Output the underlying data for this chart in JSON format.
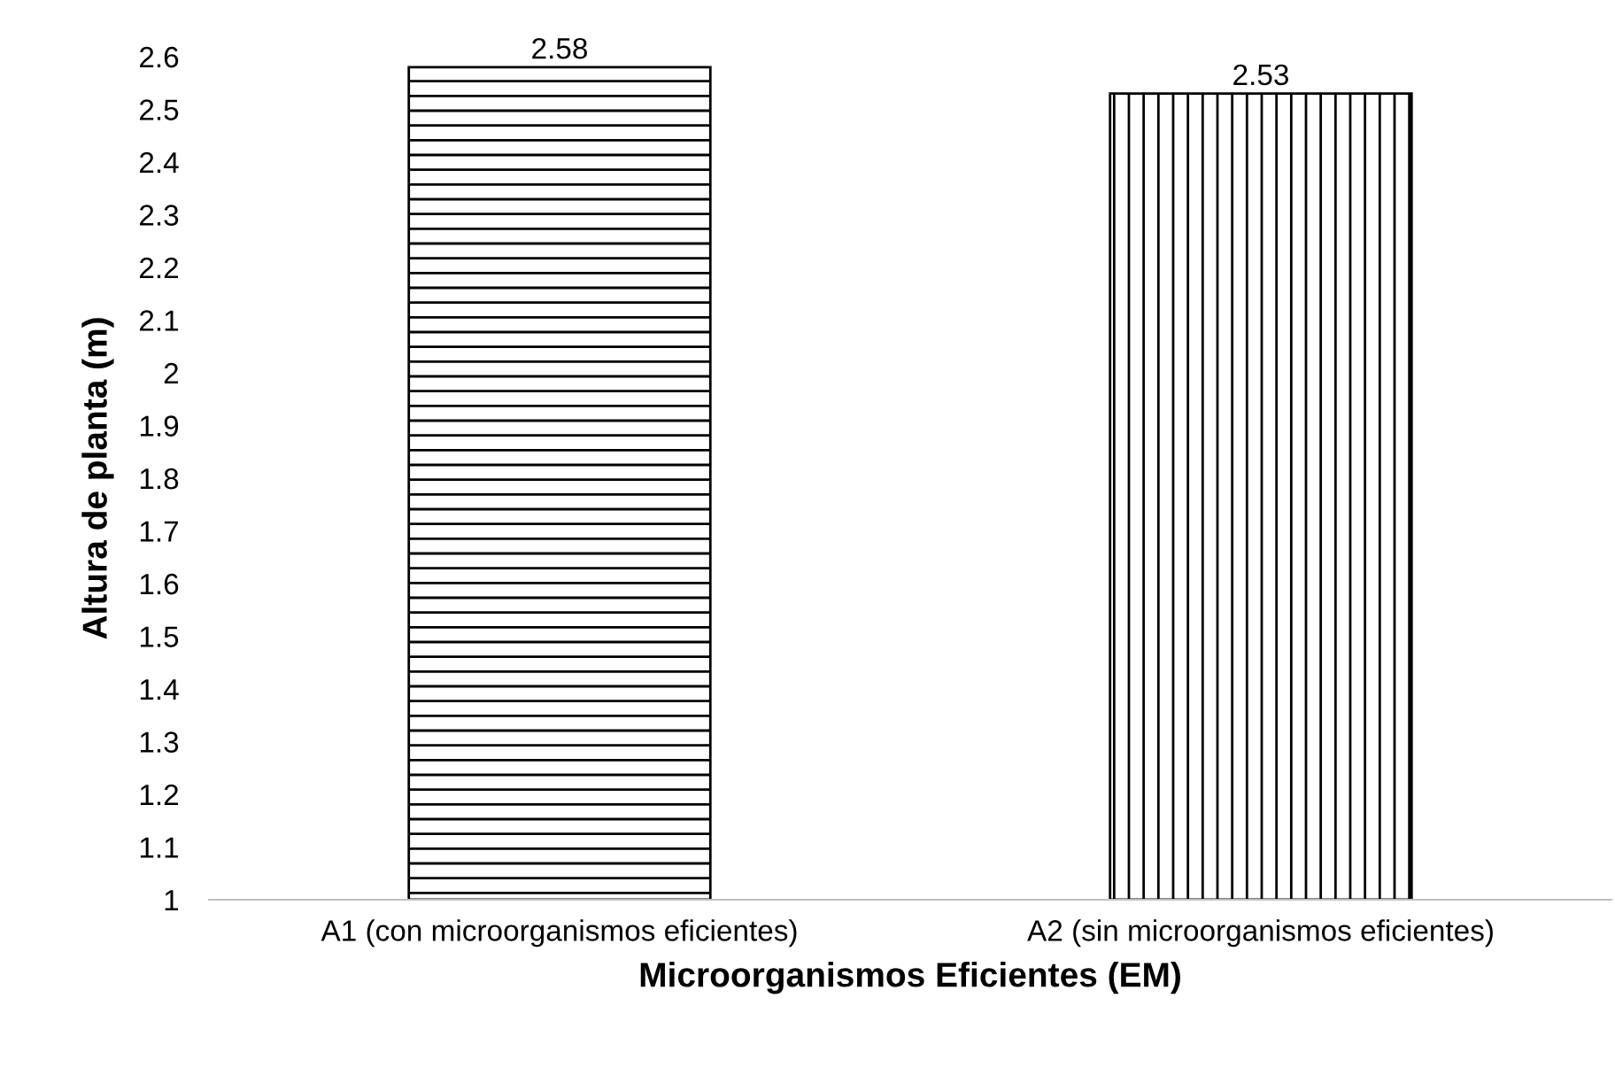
{
  "chart_data": {
    "type": "bar",
    "xlabel": "Microorganismos Eficientes (EM)",
    "ylabel": "Altura de planta (m)",
    "categories": [
      "A1 (con microorganismos eficientes)",
      "A2 (sin microorganismos eficientes)"
    ],
    "values": [
      2.58,
      2.53
    ],
    "colors": [
      "#000000",
      "#000000"
    ],
    "ylim": [
      1,
      2.6
    ],
    "yticks": [
      1,
      1.1,
      1.2,
      1.3,
      1.4,
      1.5,
      1.6,
      1.7,
      1.8,
      1.9,
      2,
      2.1,
      2.2,
      2.3,
      2.4,
      2.5,
      2.6
    ],
    "data_labels": true,
    "grid": false,
    "legend": false
  }
}
